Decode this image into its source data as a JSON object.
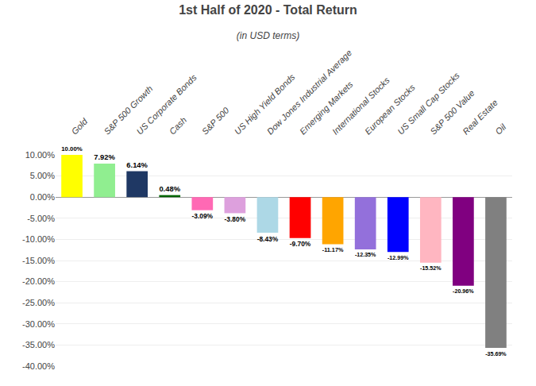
{
  "chart_data": {
    "type": "bar",
    "title": "1st Half of 2020 - Total Return",
    "subtitle": "(in USD terms)",
    "categories": [
      "Gold",
      "S&P 500 Growth",
      "US Corporate Bonds",
      "Cash",
      "S&P 500",
      "US High Yield Bonds",
      "Dow Jones Industrial Average",
      "Emerging Markets",
      "International Stocks",
      "European Stocks",
      "US Small Cap Stocks",
      "S&P 500 Value",
      "Real Estate",
      "Oil"
    ],
    "values": [
      10.0,
      7.92,
      6.14,
      0.48,
      -3.09,
      -3.8,
      -8.43,
      -9.7,
      -11.17,
      -12.35,
      -12.99,
      -15.52,
      -20.96,
      -35.69
    ],
    "value_labels": [
      "10.00%",
      "7.92%",
      "6.14%",
      "0.48%",
      "-3.09%",
      "-3.80%",
      "-8.43%",
      "-9.70%",
      "-11.17%",
      "-12.35%",
      "-12.99%",
      "-15.52%",
      "-20.96%",
      "-35.69%"
    ],
    "data_labels": true,
    "colors": [
      "#FFFF00",
      "#90EE90",
      "#1F3864",
      "#006400",
      "#FF69B4",
      "#DDA0DD",
      "#ADD8E6",
      "#FF0000",
      "#FFA500",
      "#9370DB",
      "#0000FF",
      "#FFB6C1",
      "#800080",
      "#808080"
    ],
    "ylim": [
      -40,
      10
    ],
    "yticks": [
      {
        "value": 10,
        "label": "10.00%"
      },
      {
        "value": 5,
        "label": "5.00%"
      },
      {
        "value": 0,
        "label": "0.00%"
      },
      {
        "value": -5,
        "label": "-5.00%"
      },
      {
        "value": -10,
        "label": "-10.00%"
      },
      {
        "value": -15,
        "label": "-15.00%"
      },
      {
        "value": -20,
        "label": "-20.00%"
      },
      {
        "value": -25,
        "label": "-25.00%"
      },
      {
        "value": -30,
        "label": "-30.00%"
      },
      {
        "value": -35,
        "label": "-35.00%"
      },
      {
        "value": -40,
        "label": "-40.00%"
      }
    ],
    "grid": true
  }
}
